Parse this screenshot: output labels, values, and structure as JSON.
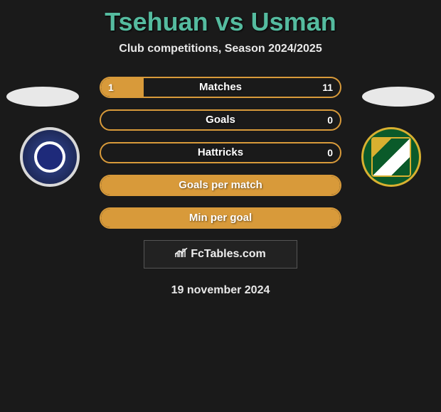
{
  "title": "Tsehuan vs Usman",
  "subtitle": "Club competitions, Season 2024/2025",
  "date": "19 november 2024",
  "brand": "FcTables.com",
  "colors": {
    "accent_title": "#55bb9f",
    "bar_border": "#d89a3a",
    "bar_fill": "#d89a3a",
    "background": "#1a1a1a"
  },
  "bars": [
    {
      "label": "Matches",
      "left": "1",
      "right": "11",
      "left_pct": 18,
      "right_pct": 0,
      "has_right_fill": false
    },
    {
      "label": "Goals",
      "left": "",
      "right": "0",
      "left_pct": 0,
      "right_pct": 0,
      "has_right_fill": false
    },
    {
      "label": "Hattricks",
      "left": "",
      "right": "0",
      "left_pct": 0,
      "right_pct": 0,
      "has_right_fill": false
    },
    {
      "label": "Goals per match",
      "left": "",
      "right": "",
      "left_pct": 100,
      "right_pct": 0,
      "has_right_fill": false,
      "full": true
    },
    {
      "label": "Min per goal",
      "left": "",
      "right": "",
      "left_pct": 100,
      "right_pct": 0,
      "has_right_fill": false,
      "full": true
    }
  ]
}
